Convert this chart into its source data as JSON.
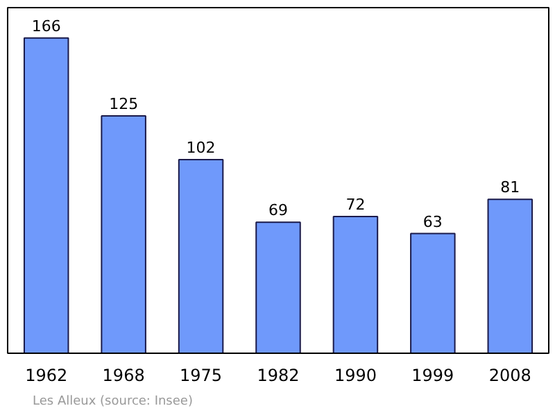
{
  "chart_data": {
    "type": "bar",
    "categories": [
      "1962",
      "1968",
      "1975",
      "1982",
      "1990",
      "1999",
      "2008"
    ],
    "values": [
      166,
      125,
      102,
      69,
      72,
      63,
      81
    ],
    "color": "#6f99fb",
    "ylim": [
      0,
      182
    ],
    "data_labels": true,
    "annotations": [
      "Les Alleux   (source: Insee)"
    ]
  }
}
